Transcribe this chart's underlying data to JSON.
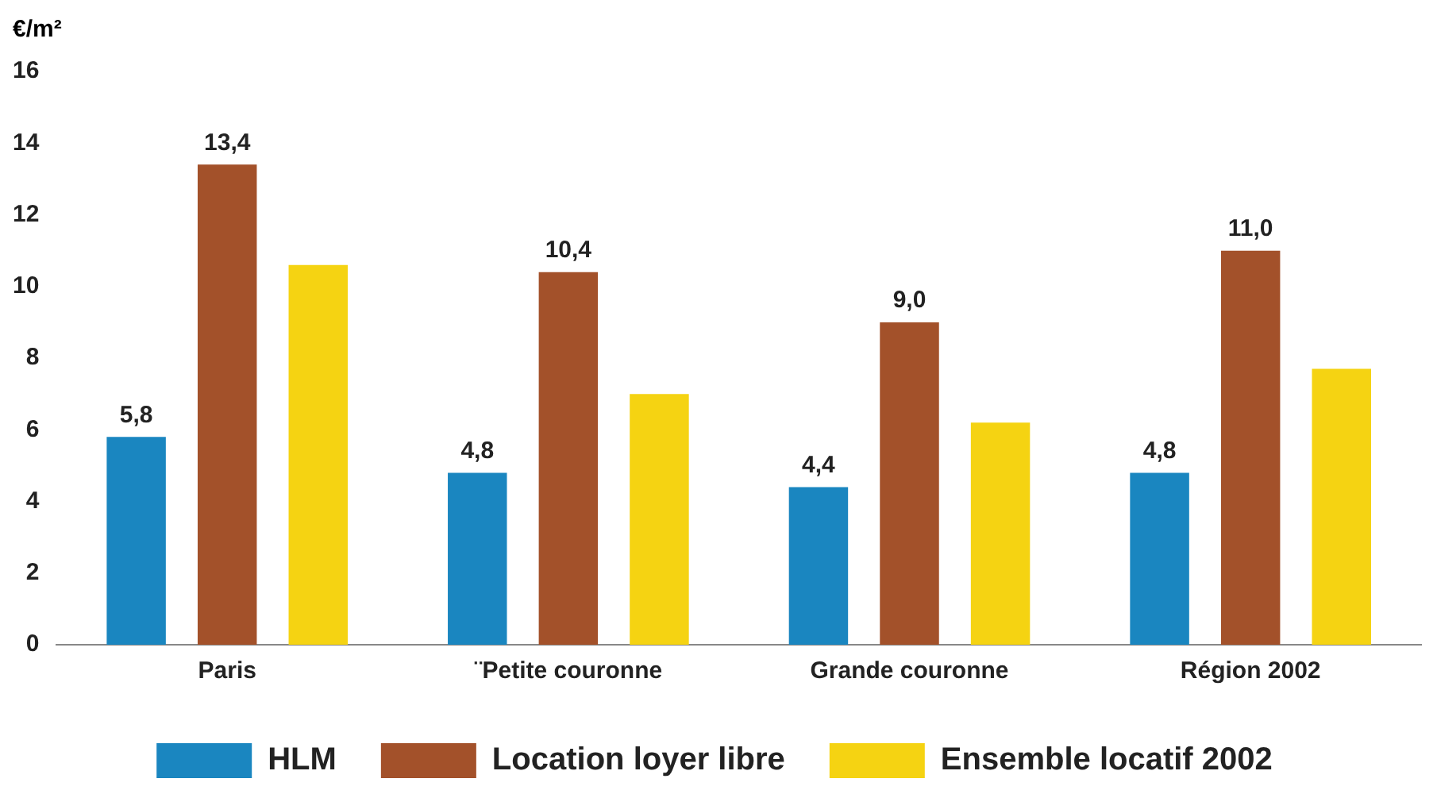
{
  "chart_data": {
    "type": "bar",
    "ylabel": "€/m²",
    "categories": [
      "Paris",
      "¨Petite couronne",
      "Grande couronne",
      "Région 2002"
    ],
    "series": [
      {
        "name": "HLM",
        "color": "#1a86c0",
        "values": [
          5.8,
          4.8,
          4.4,
          4.8
        ],
        "value_labels": [
          "5,8",
          "4,8",
          "4,4",
          "4,8"
        ]
      },
      {
        "name": "Location loyer libre",
        "color": "#a3512a",
        "values": [
          13.4,
          10.4,
          9.0,
          11.0
        ],
        "value_labels": [
          "13,4",
          "10,4",
          "9,0",
          "11,0"
        ]
      },
      {
        "name": "Ensemble locatif 2002",
        "color": "#f5d312",
        "values": [
          10.6,
          7.0,
          6.2,
          7.7
        ]
      }
    ],
    "ylim": [
      0,
      16
    ],
    "yticks": [
      0,
      2,
      4,
      6,
      8,
      10,
      12,
      14,
      16
    ],
    "grid": false,
    "legend": "bottom"
  }
}
